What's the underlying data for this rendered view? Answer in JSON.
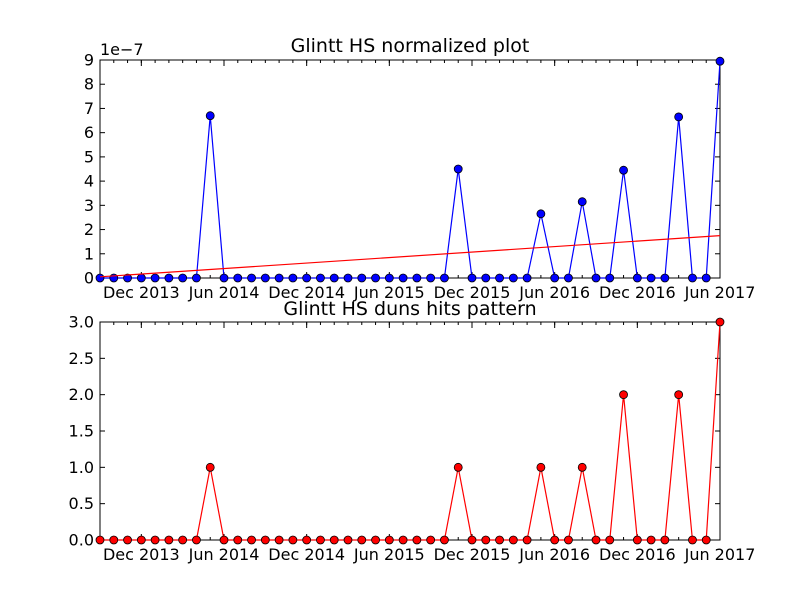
{
  "chart_data": [
    {
      "type": "line",
      "title": "Glintt HS normalized plot",
      "offset_label": "1e−7",
      "xlabel": "",
      "ylabel": "",
      "x_tick_labels": [
        "Dec 2013",
        "Jun 2014",
        "Dec 2014",
        "Jun 2015",
        "Dec 2015",
        "Jun 2016",
        "Dec 2016",
        "Jun 2017"
      ],
      "y_ticks": [
        0,
        1,
        2,
        3,
        4,
        5,
        6,
        7,
        8,
        9
      ],
      "y_tick_labels": [
        "0",
        "1",
        "2",
        "3",
        "4",
        "5",
        "6",
        "7",
        "8",
        "9"
      ],
      "ylim": [
        0,
        9
      ],
      "grid": false,
      "series": [
        {
          "color": "#0000ff",
          "marker": "circle",
          "values": [
            0,
            0,
            0,
            0,
            0,
            0,
            0,
            0,
            6.7,
            0,
            0,
            0,
            0,
            0,
            0,
            0,
            0,
            0,
            0,
            0,
            0,
            0,
            0,
            0,
            0,
            0,
            4.5,
            0,
            0,
            0,
            0,
            0,
            2.65,
            0,
            0,
            3.15,
            0,
            0,
            4.45,
            0,
            0,
            0,
            6.65,
            0,
            0,
            8.95
          ]
        },
        {
          "color": "#ff0000",
          "marker": "none",
          "values_trend": [
            0.05,
            1.75
          ]
        }
      ]
    },
    {
      "type": "line",
      "title": "Glintt HS duns hits pattern",
      "xlabel": "",
      "ylabel": "",
      "x_tick_labels": [
        "Dec 2013",
        "Jun 2014",
        "Dec 2014",
        "Jun 2015",
        "Dec 2015",
        "Jun 2016",
        "Dec 2016",
        "Jun 2017"
      ],
      "y_ticks": [
        0,
        0.5,
        1,
        1.5,
        2,
        2.5,
        3
      ],
      "y_tick_labels": [
        "0.0",
        "0.5",
        "1.0",
        "1.5",
        "2.0",
        "2.5",
        "3.0"
      ],
      "ylim": [
        0,
        3
      ],
      "grid": false,
      "series": [
        {
          "color": "#ff0000",
          "marker": "circle",
          "values": [
            0,
            0,
            0,
            0,
            0,
            0,
            0,
            0,
            1,
            0,
            0,
            0,
            0,
            0,
            0,
            0,
            0,
            0,
            0,
            0,
            0,
            0,
            0,
            0,
            0,
            0,
            1,
            0,
            0,
            0,
            0,
            0,
            1,
            0,
            0,
            1,
            0,
            0,
            2,
            0,
            0,
            0,
            2,
            0,
            0,
            3
          ]
        }
      ]
    }
  ]
}
